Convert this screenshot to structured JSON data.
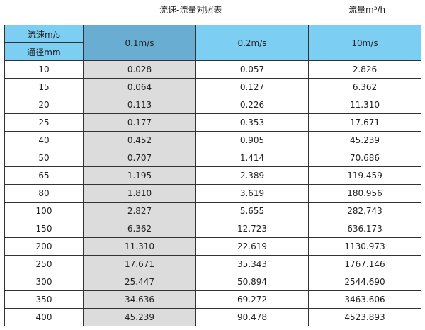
{
  "title": "流速-流量对照表",
  "unit_label": "流量m³/h",
  "header": {
    "velocity_label": "流速m/s",
    "diameter_label": "通径mm",
    "columns": [
      "0.1m/s",
      "0.2m/s",
      "10m/s"
    ]
  },
  "rows": [
    [
      "10",
      "0.028",
      "0.057",
      "2.826"
    ],
    [
      "15",
      "0.064",
      "0.127",
      "6.362"
    ],
    [
      "20",
      "0.113",
      "0.226",
      "11.310"
    ],
    [
      "25",
      "0.177",
      "0.353",
      "17.671"
    ],
    [
      "40",
      "0.452",
      "0.905",
      "45.239"
    ],
    [
      "50",
      "0.707",
      "1.414",
      "70.686"
    ],
    [
      "65",
      "1.195",
      "2.389",
      "119.459"
    ],
    [
      "80",
      "1.810",
      "3.619",
      "180.956"
    ],
    [
      "100",
      "2.827",
      "5.655",
      "282.743"
    ],
    [
      "150",
      "6.362",
      "12.723",
      "636.173"
    ],
    [
      "200",
      "11.310",
      "22.619",
      "1130.973"
    ],
    [
      "250",
      "17.671",
      "35.343",
      "1767.146"
    ],
    [
      "300",
      "25.447",
      "50.894",
      "2544.690"
    ],
    [
      "350",
      "34.636",
      "69.272",
      "3463.606"
    ],
    [
      "400",
      "45.239",
      "90.478",
      "4523.893"
    ]
  ],
  "colors": {
    "header_blue": "#7ccff3",
    "header_highlight": "#6aadd2",
    "column_gray": "#dcdcdc"
  }
}
